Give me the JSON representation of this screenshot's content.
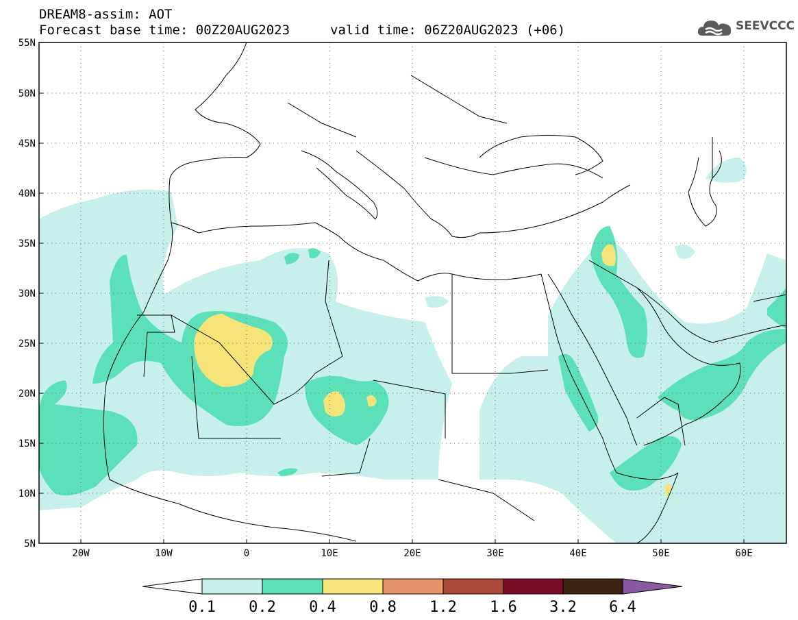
{
  "header": {
    "model": "DREAM8-assim: AOT",
    "base_time": "Forecast base time: 00Z20AUG2023",
    "valid_time": "valid time: 06Z20AUG2023 (+06)"
  },
  "logo": {
    "text": "SEEVCCC",
    "icon": "cloud-icon"
  },
  "map": {
    "lat_labels": [
      "55N",
      "50N",
      "45N",
      "40N",
      "35N",
      "30N",
      "25N",
      "20N",
      "15N",
      "10N",
      "5N"
    ],
    "lat_values": [
      55,
      50,
      45,
      40,
      35,
      30,
      25,
      20,
      15,
      10,
      5
    ],
    "lon_labels": [
      "20W",
      "10W",
      "0",
      "10E",
      "20E",
      "30E",
      "40E",
      "50E",
      "60E"
    ],
    "lon_values": [
      -20,
      -10,
      0,
      10,
      20,
      30,
      40,
      50,
      60
    ],
    "extent": {
      "lon_min": -25,
      "lon_max": 65,
      "lat_min": 5,
      "lat_max": 55
    },
    "gridlines": "dotted"
  },
  "colorbar": {
    "labels": [
      "0.1",
      "0.2",
      "0.4",
      "0.8",
      "1.2",
      "1.6",
      "3.2",
      "6.4"
    ],
    "colors": [
      "#ffffff",
      "#c8f0ea",
      "#5ce0b8",
      "#f5e47a",
      "#e9936a",
      "#a8493a",
      "#7a0c2a",
      "#3a2412",
      "#8a5aa0"
    ],
    "extend": "both"
  },
  "palette": {
    "aot_0_1": "#c8f0ea",
    "aot_0_2": "#5ce0b8",
    "aot_0_4": "#f5e47a"
  }
}
